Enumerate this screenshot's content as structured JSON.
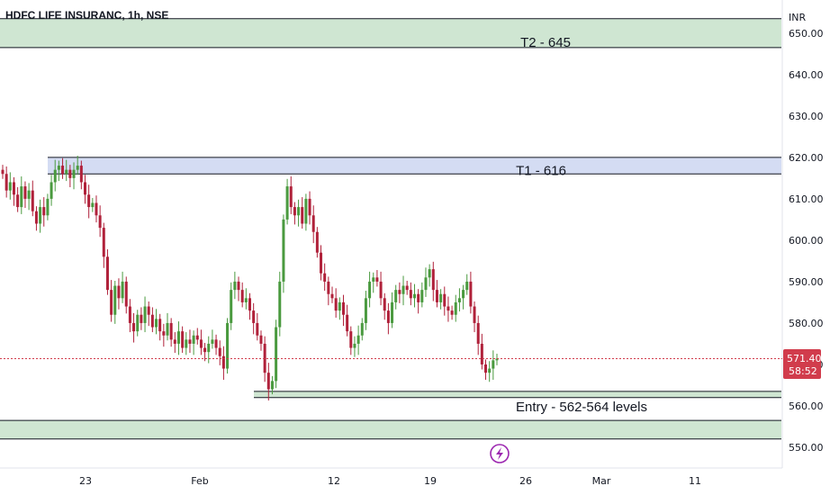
{
  "header": {
    "title": "HDFC LIFE INSURANC, 1h, NSE",
    "currency": "INR"
  },
  "price_tag": {
    "price": "571.40",
    "countdown": "58:52"
  },
  "icons": {
    "flash": "lightning-bolt-icon"
  },
  "colors": {
    "up": "#26a69a",
    "up_body": "#4a9a3f",
    "down": "#b0213a",
    "zone_green": "#cfe6d2",
    "zone_blue": "#d4dcf3",
    "price_line": "#d13c4c"
  },
  "chart_data": {
    "type": "candlestick",
    "title": "HDFC LIFE INSURANC, 1h, NSE",
    "ylim": [
      545,
      658
    ],
    "y_ticks": [
      550,
      560,
      570,
      580,
      590,
      600,
      610,
      620,
      630,
      640,
      650
    ],
    "y_tick_labels": [
      "550.00",
      "560.00",
      "570.00",
      "580.00",
      "590.00",
      "600.00",
      "610.00",
      "620.00",
      "630.00",
      "640.00",
      "650.00"
    ],
    "x_tick_labels": [
      "23",
      "Feb",
      "12",
      "19",
      "26",
      "Mar",
      "11"
    ],
    "zones": [
      {
        "label": "T2 - 645",
        "low": 646.5,
        "high": 653.5,
        "color": "green"
      },
      {
        "label": "T1 - 616",
        "low": 616,
        "high": 620,
        "color": "blue"
      },
      {
        "label": "Entry - 562-564 levels",
        "low": 562,
        "high": 563.5,
        "color": "green"
      },
      {
        "label": "",
        "low": 552,
        "high": 556.5,
        "color": "green"
      }
    ],
    "last_price": 571.4,
    "closes": [
      616,
      612,
      614,
      611,
      608,
      613,
      610,
      612,
      607,
      604,
      608,
      606,
      610,
      614,
      617,
      618,
      616,
      617,
      615,
      617,
      618,
      614,
      611,
      608,
      609,
      606,
      603,
      596,
      588,
      582,
      589,
      586,
      590,
      584,
      580,
      578,
      582,
      580,
      584,
      582,
      579,
      581,
      578,
      577,
      580,
      576,
      575,
      578,
      574,
      576,
      575,
      577,
      576,
      574,
      573,
      575,
      576,
      574,
      572,
      569,
      580,
      588,
      590,
      588,
      585,
      586,
      583,
      580,
      577,
      575,
      568,
      564,
      566,
      579,
      590,
      605,
      613,
      608,
      606,
      608,
      604,
      610,
      606,
      602,
      597,
      592,
      590,
      587,
      586,
      583,
      585,
      582,
      578,
      574,
      575,
      577,
      580,
      586,
      590,
      591,
      590,
      586,
      583,
      580,
      585,
      588,
      587,
      589,
      588,
      586,
      587,
      585,
      588,
      591,
      593,
      588,
      585,
      587,
      584,
      583,
      582,
      585,
      586,
      588,
      590,
      584,
      580,
      575,
      570,
      568,
      569,
      571,
      571.4
    ]
  }
}
